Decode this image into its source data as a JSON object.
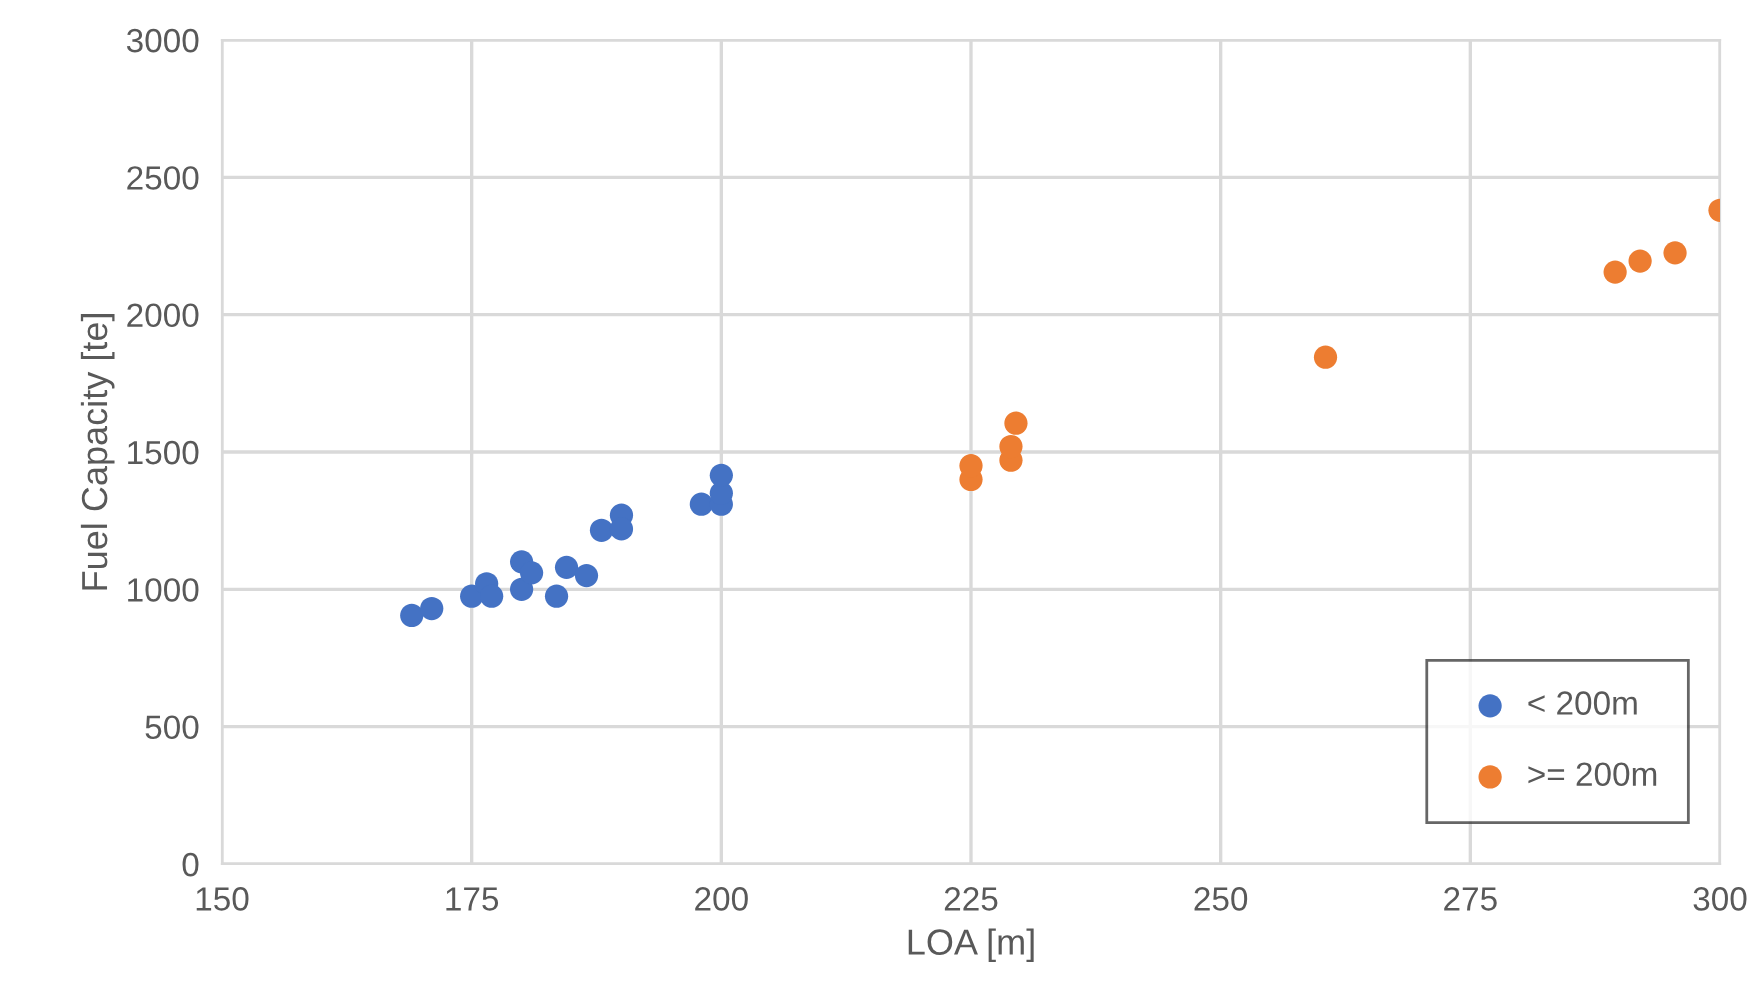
{
  "chart_data": {
    "type": "scatter",
    "xlabel": "LOA [m]",
    "ylabel": "Fuel Capacity [te]",
    "xlim": [
      150,
      300
    ],
    "xticks": [
      150,
      175,
      200,
      225,
      250,
      275,
      300
    ],
    "ylim": [
      0,
      3000
    ],
    "yticks": [
      0,
      500,
      1000,
      1500,
      2000,
      2500,
      3000
    ],
    "grid": true,
    "legend": "bottom right",
    "marker": "circle",
    "series": [
      {
        "name": "< 200m",
        "color": "#4472c4",
        "x": [
          169,
          171,
          175,
          176.5,
          177,
          180,
          180,
          181,
          183.5,
          184.5,
          186.5,
          188,
          190,
          190,
          198,
          200,
          200,
          200
        ],
        "values": [
          905,
          930,
          975,
          1020,
          975,
          1000,
          1100,
          1060,
          975,
          1080,
          1050,
          1215,
          1270,
          1220,
          1310,
          1310,
          1350,
          1415
        ]
      },
      {
        "name": ">= 200m",
        "color": "#ed7d31",
        "x": [
          225,
          225,
          229,
          229,
          229.5,
          260.5,
          289.5,
          292,
          295.5,
          300
        ],
        "values": [
          1400,
          1450,
          1470,
          1520,
          1605,
          1845,
          2155,
          2195,
          2225,
          2380
        ]
      }
    ]
  }
}
